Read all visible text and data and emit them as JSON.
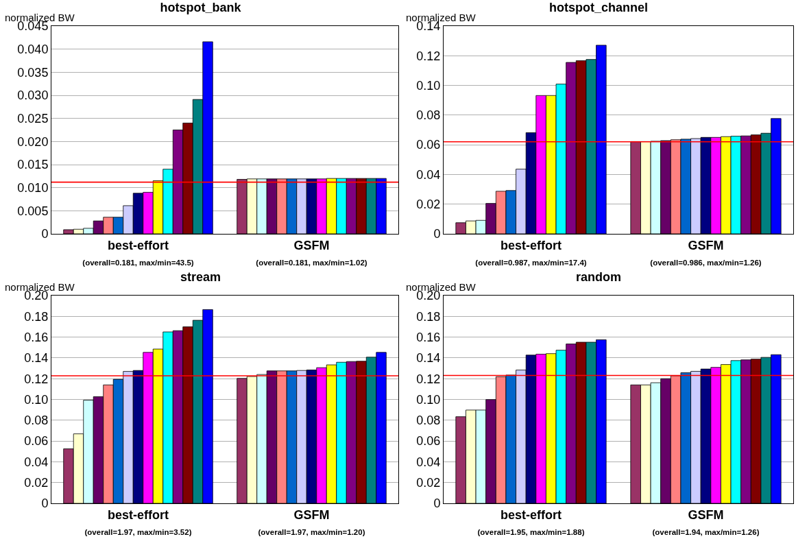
{
  "chart_data": [
    {
      "type": "bar",
      "title": "hotspot_bank",
      "ylabel": "normalized BW",
      "categories": [
        "best-effort\n(overall=0.181, max/min=43.5)",
        "GSFM\n(overall=0.181, max/min=1.02)"
      ],
      "ylim": [
        0,
        0.045
      ],
      "yticks": [
        0,
        0.005,
        {
          "value": 0.01,
          "label": "0.010"
        },
        0.015,
        {
          "value": 0.02,
          "label": "0.020"
        },
        0.025,
        {
          "value": 0.03,
          "label": "0.030"
        },
        0.035,
        {
          "value": 0.04,
          "label": "0.040"
        },
        0.045
      ],
      "grid": "y",
      "ref_lines": [
        {
          "axis": "y",
          "value": 0.0112,
          "color": "#ff0000"
        }
      ],
      "series": [
        {
          "color": "#993366",
          "values": [
            0.0009,
            0.0118
          ]
        },
        {
          "color": "#ffffcc",
          "values": [
            0.001,
            0.0119
          ]
        },
        {
          "color": "#ccffff",
          "values": [
            0.0012,
            0.0119
          ]
        },
        {
          "color": "#660066",
          "values": [
            0.0028,
            0.0119
          ]
        },
        {
          "color": "#ff8080",
          "values": [
            0.0036,
            0.0119
          ]
        },
        {
          "color": "#0066cc",
          "values": [
            0.0036,
            0.0119
          ]
        },
        {
          "color": "#ccccff",
          "values": [
            0.0061,
            0.0119
          ]
        },
        {
          "color": "#000080",
          "values": [
            0.0088,
            0.0119
          ]
        },
        {
          "color": "#ff00ff",
          "values": [
            0.009,
            0.0119
          ]
        },
        {
          "color": "#ffff00",
          "values": [
            0.0115,
            0.012
          ]
        },
        {
          "color": "#00ffff",
          "values": [
            0.014,
            0.012
          ]
        },
        {
          "color": "#800080",
          "values": [
            0.0225,
            0.012
          ]
        },
        {
          "color": "#800000",
          "values": [
            0.024,
            0.012
          ]
        },
        {
          "color": "#008080",
          "values": [
            0.0291,
            0.012
          ]
        },
        {
          "color": "#0000ff",
          "values": [
            0.0416,
            0.012
          ]
        }
      ]
    },
    {
      "type": "bar",
      "title": "hotspot_channel",
      "ylabel": "normalized BW",
      "categories": [
        "best-effort\n(overall=0.987, max/min=17.4)",
        "GSFM\n(overall=0.986, max/min=1.26)"
      ],
      "ylim": [
        0,
        0.14
      ],
      "yticks": [
        0,
        0.02,
        0.04,
        0.06,
        0.08,
        {
          "value": 0.1,
          "label": "0.10"
        },
        0.12,
        0.14
      ],
      "grid": "y",
      "ref_lines": [
        {
          "axis": "y",
          "value": 0.062,
          "color": "#ff0000"
        }
      ],
      "series": [
        {
          "color": "#993366",
          "values": [
            0.0075,
            0.0622
          ]
        },
        {
          "color": "#ffffcc",
          "values": [
            0.0087,
            0.0622
          ]
        },
        {
          "color": "#ccffff",
          "values": [
            0.0091,
            0.0624
          ]
        },
        {
          "color": "#660066",
          "values": [
            0.0205,
            0.0628
          ]
        },
        {
          "color": "#ff8080",
          "values": [
            0.0287,
            0.0634
          ]
        },
        {
          "color": "#0066cc",
          "values": [
            0.0292,
            0.0638
          ]
        },
        {
          "color": "#ccccff",
          "values": [
            0.0436,
            0.0642
          ]
        },
        {
          "color": "#000080",
          "values": [
            0.0682,
            0.065
          ]
        },
        {
          "color": "#ff00ff",
          "values": [
            0.0932,
            0.065
          ]
        },
        {
          "color": "#ffff00",
          "values": [
            0.0932,
            0.0655
          ]
        },
        {
          "color": "#00ffff",
          "values": [
            0.1009,
            0.0658
          ]
        },
        {
          "color": "#800080",
          "values": [
            0.1155,
            0.066
          ]
        },
        {
          "color": "#800000",
          "values": [
            0.1167,
            0.0667
          ]
        },
        {
          "color": "#008080",
          "values": [
            0.1175,
            0.0678
          ]
        },
        {
          "color": "#0000ff",
          "values": [
            0.1271,
            0.0777
          ]
        }
      ]
    },
    {
      "type": "bar",
      "title": "stream",
      "ylabel": "normalized BW",
      "categories": [
        "best-effort\n(overall=1.97, max/min=3.52)",
        "GSFM\n(overall=1.97, max/min=1.20)"
      ],
      "ylim": [
        0,
        0.2
      ],
      "yticks": [
        0,
        0.02,
        0.04,
        0.06,
        0.08,
        {
          "value": 0.1,
          "label": "0.10"
        },
        0.12,
        0.14,
        0.16,
        0.18,
        {
          "value": 0.2,
          "label": "0.20"
        }
      ],
      "grid": "y",
      "ref_lines": [
        {
          "axis": "y",
          "value": 0.1228,
          "color": "#ff0000"
        }
      ],
      "series": [
        {
          "color": "#993366",
          "values": [
            0.0525,
            0.1203
          ]
        },
        {
          "color": "#ffffcc",
          "values": [
            0.0669,
            0.1221
          ]
        },
        {
          "color": "#ccffff",
          "values": [
            0.0993,
            0.124
          ]
        },
        {
          "color": "#660066",
          "values": [
            0.1027,
            0.1275
          ]
        },
        {
          "color": "#ff8080",
          "values": [
            0.114,
            0.1275
          ]
        },
        {
          "color": "#0066cc",
          "values": [
            0.1194,
            0.1275
          ]
        },
        {
          "color": "#ccccff",
          "values": [
            0.127,
            0.1279
          ]
        },
        {
          "color": "#000080",
          "values": [
            0.1279,
            0.1284
          ]
        },
        {
          "color": "#ff00ff",
          "values": [
            0.1453,
            0.1306
          ]
        },
        {
          "color": "#ffff00",
          "values": [
            0.1485,
            0.1333
          ]
        },
        {
          "color": "#00ffff",
          "values": [
            0.165,
            0.1358
          ]
        },
        {
          "color": "#800080",
          "values": [
            0.1662,
            0.1365
          ]
        },
        {
          "color": "#800000",
          "values": [
            0.1699,
            0.1368
          ]
        },
        {
          "color": "#008080",
          "values": [
            0.1762,
            0.1407
          ]
        },
        {
          "color": "#0000ff",
          "values": [
            0.1865,
            0.1453
          ]
        }
      ]
    },
    {
      "type": "bar",
      "title": "random",
      "ylabel": "normalized BW",
      "categories": [
        "best-effort\n(overall=1.95, max/min=1.88)",
        "GSFM\n(overall=1.94, max/min=1.26)"
      ],
      "ylim": [
        0,
        0.2
      ],
      "yticks": [
        0,
        0.02,
        0.04,
        0.06,
        0.08,
        {
          "value": 0.1,
          "label": "0.10"
        },
        0.12,
        0.14,
        0.16,
        0.18,
        {
          "value": 0.2,
          "label": "0.20"
        }
      ],
      "grid": "y",
      "ref_lines": [
        {
          "axis": "y",
          "value": 0.1231,
          "color": "#ff0000"
        }
      ],
      "series": [
        {
          "color": "#993366",
          "values": [
            0.0834,
            0.114
          ]
        },
        {
          "color": "#ffffcc",
          "values": [
            0.0898,
            0.114
          ]
        },
        {
          "color": "#ccffff",
          "values": [
            0.0898,
            0.1161
          ]
        },
        {
          "color": "#660066",
          "values": [
            0.0999,
            0.12
          ]
        },
        {
          "color": "#ff8080",
          "values": [
            0.1219,
            0.1228
          ]
        },
        {
          "color": "#0066cc",
          "values": [
            0.1235,
            0.1257
          ]
        },
        {
          "color": "#ccccff",
          "values": [
            0.1283,
            0.1271
          ]
        },
        {
          "color": "#000080",
          "values": [
            0.1427,
            0.1293
          ]
        },
        {
          "color": "#ff00ff",
          "values": [
            0.1436,
            0.1309
          ]
        },
        {
          "color": "#ffff00",
          "values": [
            0.1441,
            0.1336
          ]
        },
        {
          "color": "#00ffff",
          "values": [
            0.1474,
            0.1374
          ]
        },
        {
          "color": "#800080",
          "values": [
            0.1534,
            0.1381
          ]
        },
        {
          "color": "#800000",
          "values": [
            0.1551,
            0.1388
          ]
        },
        {
          "color": "#008080",
          "values": [
            0.1551,
            0.1405
          ]
        },
        {
          "color": "#0000ff",
          "values": [
            0.1575,
            0.1431
          ]
        }
      ]
    }
  ]
}
